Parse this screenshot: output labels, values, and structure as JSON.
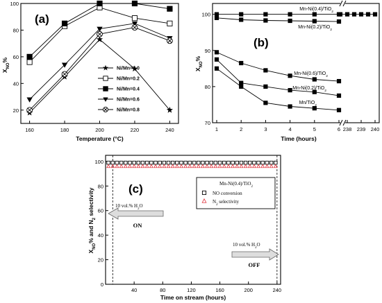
{
  "chart_data": [
    {
      "type": "line",
      "panel_label": "(a)",
      "xlabel": "Temperature (°C)",
      "ylabel": "X",
      "ylabel_sub": "NO",
      "ylabel_tail": "%",
      "x": [
        160,
        180,
        200,
        220,
        240
      ],
      "xlim": [
        155,
        245
      ],
      "ylim": [
        10,
        100
      ],
      "xticks": [
        160,
        180,
        200,
        220,
        240
      ],
      "yticks": [
        20,
        40,
        60,
        80,
        100
      ],
      "legend_position": "bottom-right",
      "series": [
        {
          "name": "Ni/Mn=0.0",
          "marker": "star",
          "values": [
            18,
            45,
            73,
            51,
            20
          ]
        },
        {
          "name": "Ni/Mn=0.2",
          "marker": "square-open",
          "values": [
            56,
            83,
            97,
            89,
            85
          ]
        },
        {
          "name": "Ni/Mn=0.4",
          "marker": "square-filled",
          "values": [
            60,
            85,
            100,
            100,
            96
          ]
        },
        {
          "name": "Ni/Mn=0.6",
          "marker": "triangle-down",
          "values": [
            28,
            54,
            81,
            85,
            74
          ]
        },
        {
          "name": "Ni/Mn=0.8",
          "marker": "circle-x",
          "values": [
            20,
            47,
            77,
            82,
            72
          ]
        }
      ]
    },
    {
      "type": "line",
      "panel_label": "(b)",
      "xlabel": "Time (hours)",
      "ylabel": "X",
      "ylabel_sub": "NO",
      "ylabel_tail": "%",
      "x_segment1": [
        1,
        2,
        3,
        4,
        5,
        6
      ],
      "x_segment2": [
        238,
        239,
        240
      ],
      "xticks": [
        "1",
        "2",
        "3",
        "4",
        "5",
        "6",
        "238",
        "239",
        "240"
      ],
      "ylim": [
        70,
        103
      ],
      "yticks": [
        70,
        80,
        90,
        100
      ],
      "series": [
        {
          "name": "Mn-Ni(0.4)/TiO",
          "name_sub": "2",
          "marker": "square-filled",
          "x": [
            1,
            2,
            3,
            4,
            5,
            6,
            237.5,
            238,
            238.5,
            239,
            239.5,
            240
          ],
          "values": [
            100,
            100,
            100,
            100,
            100,
            100,
            100,
            100,
            100,
            100,
            100,
            100
          ]
        },
        {
          "name": "Mn-Ni(0.2)/TiO",
          "name_sub": "2",
          "marker": "square-filled",
          "x": [
            1,
            2,
            3,
            4,
            5,
            6
          ],
          "values": [
            99,
            98.5,
            98.3,
            98.2,
            98.1,
            98
          ]
        },
        {
          "name": "Mn-Ni(0.6)/TiO",
          "name_sub": "2",
          "marker": "square-filled",
          "x": [
            1,
            2,
            3,
            4,
            5,
            6
          ],
          "values": [
            89.5,
            86.5,
            84.5,
            83,
            82,
            81.5
          ]
        },
        {
          "name": "Mn-Ni(0.2)/TiO",
          "name_sub": "2",
          "marker": "square-filled",
          "x": [
            1,
            2,
            3,
            4,
            5,
            6
          ],
          "values": [
            87.5,
            81,
            80,
            79,
            78.5,
            77.5
          ]
        },
        {
          "name": "Mn/TiO",
          "name_sub": "2",
          "marker": "square-filled",
          "x": [
            1,
            2,
            3,
            4,
            5,
            6
          ],
          "values": [
            85,
            80,
            75.5,
            74.5,
            74,
            73.5
          ]
        }
      ]
    },
    {
      "type": "scatter",
      "panel_label": "(c)",
      "xlabel": "Time on stream (hours)",
      "ylabel": "X",
      "ylabel_sub": "NO",
      "ylabel_mid": "% and N",
      "ylabel_sub2": "2",
      "ylabel_tail": " selectivity",
      "xlim": [
        0,
        245
      ],
      "ylim": [
        0,
        105
      ],
      "xticks": [
        40,
        80,
        120,
        160,
        200,
        240
      ],
      "yticks": [
        0,
        20,
        40,
        60,
        80,
        100
      ],
      "legend_title": "Mn-Ni(0.4)/TiO",
      "legend_title_sub": "2",
      "series": [
        {
          "name": "NO conversion",
          "marker": "square-open",
          "color": "#000000",
          "x_start": 4,
          "x_end": 242,
          "x_step": 6,
          "value": 99
        },
        {
          "name": "N",
          "name_sub": "2",
          "name_tail": " selectivity",
          "marker": "triangle-open",
          "color": "#e0313b",
          "x_start": 4,
          "x_end": 242,
          "x_step": 6,
          "value": 96
        }
      ],
      "annotations": [
        {
          "text": "10 vol.% H",
          "sub": "2",
          "tail": "O",
          "label": "ON",
          "arrow": "left",
          "x": 10
        },
        {
          "text": "10 vol.% H",
          "sub": "2",
          "tail": "O",
          "label": "OFF",
          "arrow": "right",
          "x": 240
        }
      ]
    }
  ]
}
